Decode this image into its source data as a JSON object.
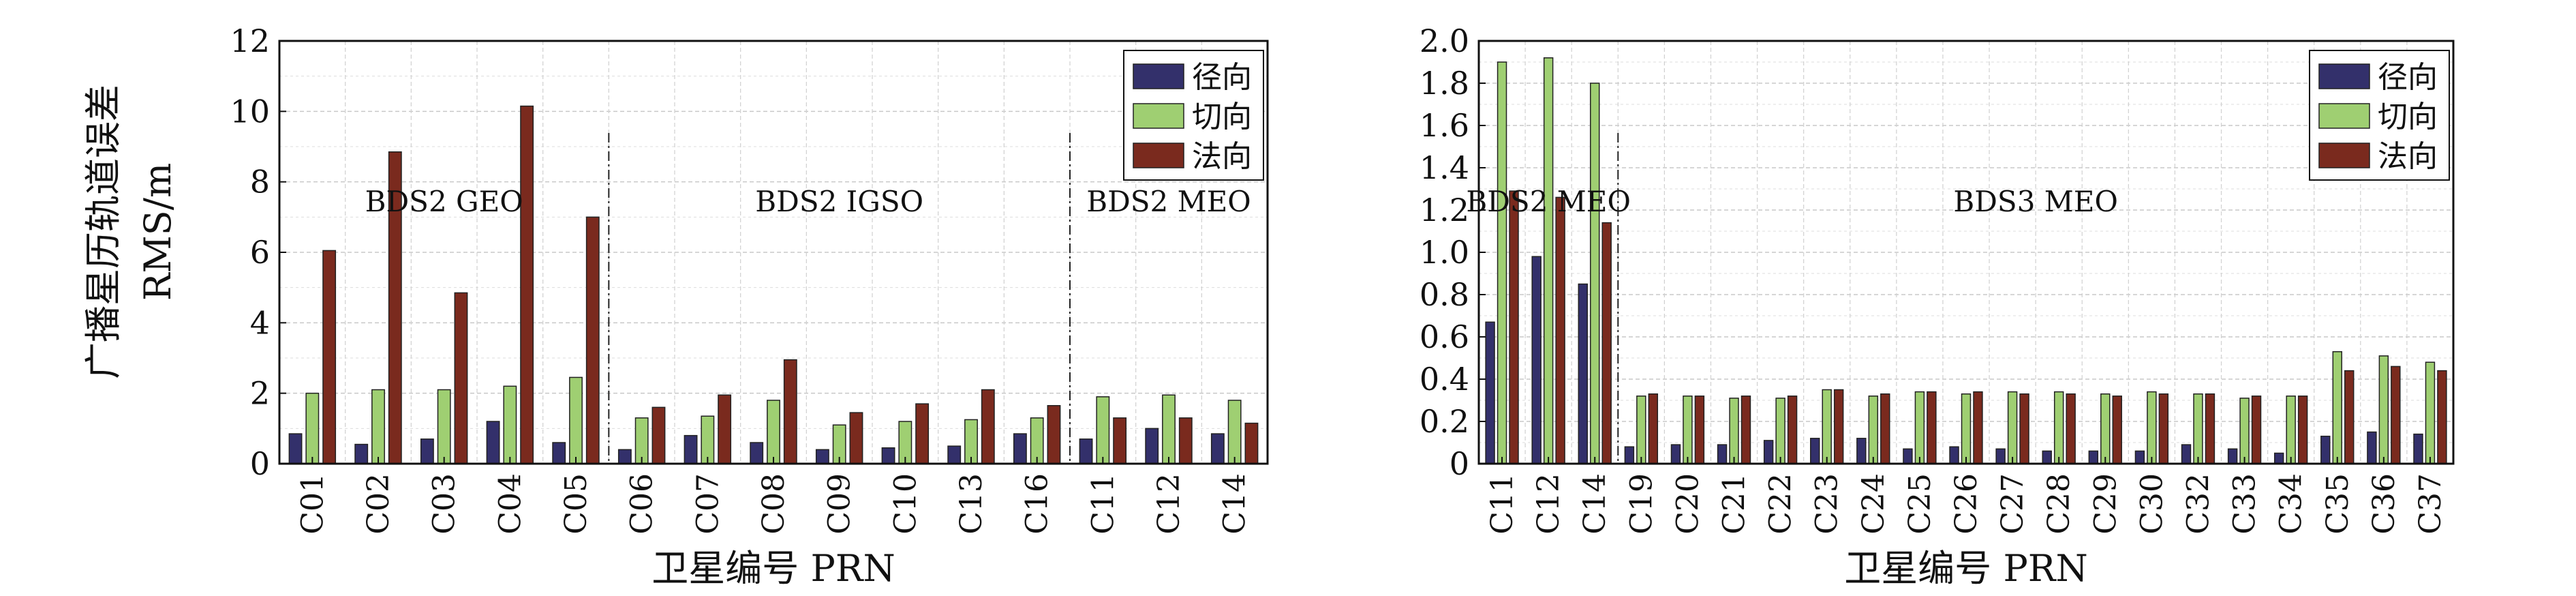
{
  "figure": {
    "ylabel_line1": "广播星历轨道误差",
    "ylabel_line2": "RMS/m"
  },
  "colors": {
    "径向": "#33306b",
    "切向": "#9fcf72",
    "法向": "#7a2a1e"
  },
  "chart_data": [
    {
      "type": "bar",
      "title": "",
      "xlabel": "卫星编号 PRN",
      "ylabel": "广播星历轨道误差 RMS/m",
      "ylim": [
        0,
        12
      ],
      "yticks": [
        "0",
        "2",
        "4",
        "6",
        "8",
        "10",
        "12"
      ],
      "grid": true,
      "legend_position": "top-right",
      "categories": [
        "C01",
        "C02",
        "C03",
        "C04",
        "C05",
        "C06",
        "C07",
        "C08",
        "C09",
        "C10",
        "C13",
        "C16",
        "C11",
        "C12",
        "C14"
      ],
      "series": [
        {
          "name": "径向",
          "values": [
            0.85,
            0.55,
            0.7,
            1.2,
            0.6,
            0.4,
            0.8,
            0.6,
            0.4,
            0.45,
            0.5,
            0.85,
            0.7,
            1.0,
            0.85
          ]
        },
        {
          "name": "切向",
          "values": [
            2.0,
            2.1,
            2.1,
            2.2,
            2.45,
            1.3,
            1.35,
            1.8,
            1.1,
            1.2,
            1.25,
            1.3,
            1.9,
            1.95,
            1.8
          ]
        },
        {
          "name": "法向",
          "values": [
            6.05,
            8.85,
            4.85,
            10.15,
            7.0,
            1.6,
            1.95,
            2.95,
            1.45,
            1.7,
            2.1,
            1.65,
            1.3,
            1.3,
            1.15
          ]
        }
      ],
      "regions": [
        {
          "label": "BDS2 GEO",
          "categories": [
            "C01",
            "C02",
            "C03",
            "C04",
            "C05"
          ]
        },
        {
          "label": "BDS2 IGSO",
          "categories": [
            "C06",
            "C07",
            "C08",
            "C09",
            "C10",
            "C13",
            "C16"
          ]
        },
        {
          "label": "BDS2 MEO",
          "categories": [
            "C11",
            "C12",
            "C14"
          ]
        }
      ]
    },
    {
      "type": "bar",
      "title": "",
      "xlabel": "卫星编号 PRN",
      "ylabel": "",
      "ylim": [
        0,
        2.0
      ],
      "yticks": [
        "0",
        "0.2",
        "0.4",
        "0.6",
        "0.8",
        "1.0",
        "1.2",
        "1.4",
        "1.6",
        "1.8",
        "2.0"
      ],
      "grid": true,
      "legend_position": "top-right",
      "categories": [
        "C11",
        "C12",
        "C14",
        "C19",
        "C20",
        "C21",
        "C22",
        "C23",
        "C24",
        "C25",
        "C26",
        "C27",
        "C28",
        "C29",
        "C30",
        "C32",
        "C33",
        "C34",
        "C35",
        "C36",
        "C37"
      ],
      "series": [
        {
          "name": "径向",
          "values": [
            0.67,
            0.98,
            0.85,
            0.08,
            0.09,
            0.09,
            0.11,
            0.12,
            0.12,
            0.07,
            0.08,
            0.07,
            0.06,
            0.06,
            0.06,
            0.09,
            0.07,
            0.05,
            0.13,
            0.15,
            0.14
          ]
        },
        {
          "name": "切向",
          "values": [
            1.9,
            1.92,
            1.8,
            0.32,
            0.32,
            0.31,
            0.31,
            0.35,
            0.32,
            0.34,
            0.33,
            0.34,
            0.34,
            0.33,
            0.34,
            0.33,
            0.31,
            0.32,
            0.53,
            0.51,
            0.48
          ]
        },
        {
          "name": "法向",
          "values": [
            1.29,
            1.26,
            1.14,
            0.33,
            0.32,
            0.32,
            0.32,
            0.35,
            0.33,
            0.34,
            0.34,
            0.33,
            0.33,
            0.32,
            0.33,
            0.33,
            0.32,
            0.32,
            0.44,
            0.46,
            0.44
          ]
        }
      ],
      "regions": [
        {
          "label": "BDS2 MEO",
          "categories": [
            "C11",
            "C12",
            "C14"
          ]
        },
        {
          "label": "BDS3 MEO",
          "categories": [
            "C19",
            "C20",
            "C21",
            "C22",
            "C23",
            "C24",
            "C25",
            "C26",
            "C27",
            "C28",
            "C29",
            "C30",
            "C32",
            "C33",
            "C34",
            "C35",
            "C36",
            "C37"
          ]
        }
      ]
    }
  ]
}
